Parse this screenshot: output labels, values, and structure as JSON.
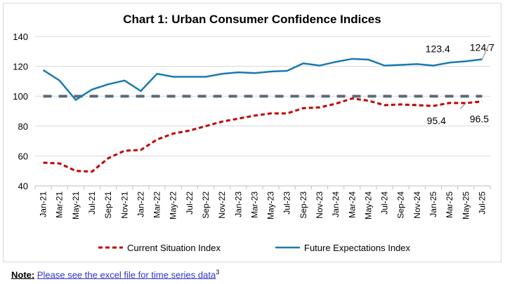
{
  "chart_data": {
    "type": "line",
    "title": "Chart 1: Urban Consumer Confidence Indices",
    "xlabel": "",
    "ylabel": "",
    "ylim": [
      40,
      140
    ],
    "yticks": [
      "40",
      "60",
      "80",
      "100",
      "120",
      "140"
    ],
    "grid": true,
    "legend_position": "bottom",
    "categories": [
      "Jan-21",
      "Mar-21",
      "May-21",
      "Jul-21",
      "Sep-21",
      "Nov-21",
      "Jan-22",
      "Mar-22",
      "May-22",
      "Jul-22",
      "Sep-22",
      "Nov-22",
      "Jan-23",
      "Mar-23",
      "May-23",
      "Jul-23",
      "Sep-23",
      "Nov-23",
      "Jan-24",
      "Mar-24",
      "May-24",
      "Jul-24",
      "Sep-24",
      "Nov-24",
      "Jan-25",
      "Mar-25",
      "May-25",
      "Jul-25"
    ],
    "series": [
      {
        "name": "Current Situation Index",
        "color": "#c00000",
        "style": "dashed",
        "values": [
          55.5,
          55,
          50,
          49.5,
          58.5,
          63.5,
          64,
          71,
          75,
          77,
          80,
          83,
          85,
          87,
          88.5,
          88.5,
          92,
          92.5,
          95,
          98.5,
          97,
          94,
          94.5,
          94,
          93.5,
          95.5,
          95.4,
          96.5
        ]
      },
      {
        "name": "Future Expectations Index",
        "color": "#1a7aaf",
        "style": "solid",
        "values": [
          117.5,
          110.5,
          97.5,
          104.5,
          108,
          110.5,
          103.5,
          115,
          113,
          113,
          113,
          115,
          116,
          115.5,
          116.5,
          117,
          122,
          120.5,
          123,
          125,
          124.5,
          120.5,
          121,
          121.5,
          120.5,
          122.5,
          123.4,
          124.7
        ]
      }
    ],
    "reference_line": {
      "value": 100,
      "color": "#5a6b7b"
    },
    "annotations": [
      {
        "text": "124.7",
        "series": 1,
        "index": 27
      },
      {
        "text": "123.4",
        "series": 1,
        "index": 26
      },
      {
        "text": "95.4",
        "series": 0,
        "index": 26
      },
      {
        "text": "96.5",
        "series": 0,
        "index": 27
      }
    ]
  },
  "note": {
    "label": "Note:",
    "link": "Please see the excel file for time series data",
    "sup": "3"
  }
}
